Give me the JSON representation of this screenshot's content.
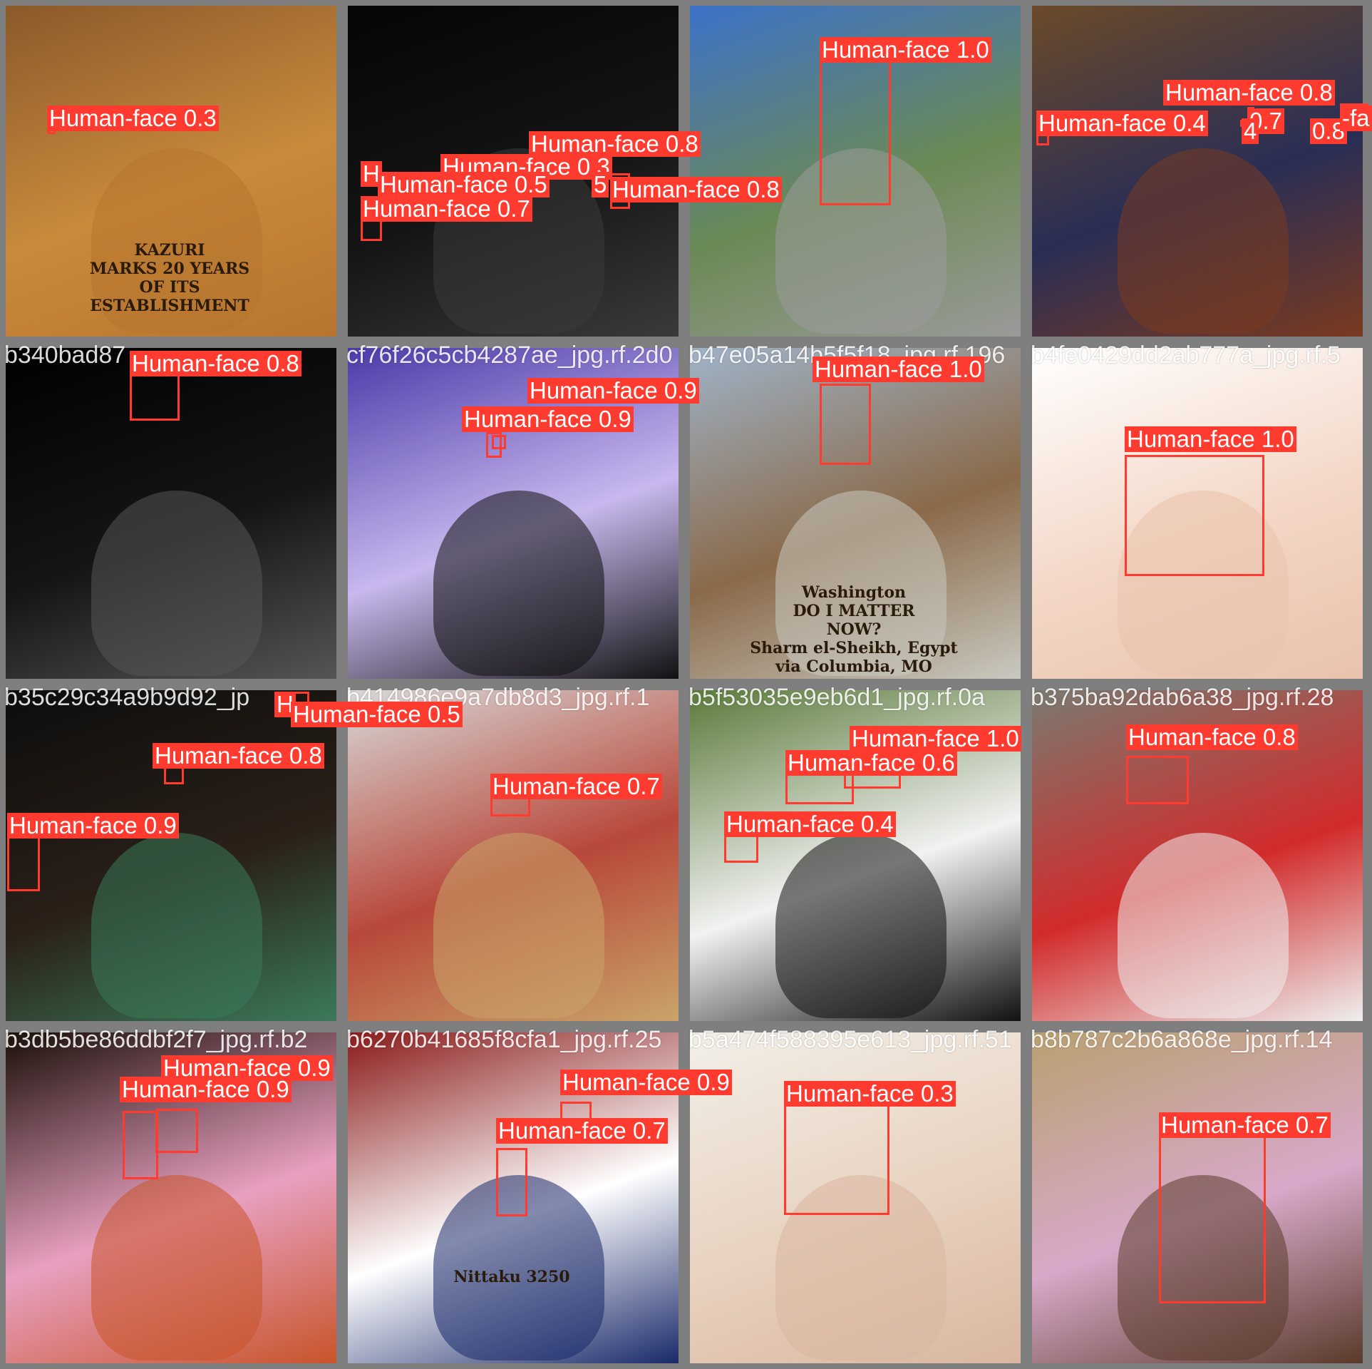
{
  "colors": {
    "border": "#7f7f7f",
    "box": "#ff3b30",
    "label_text": "#ffffff",
    "filename_text": "#ffffff"
  },
  "tiles": [
    {
      "row": 0,
      "col": 0,
      "filename": "",
      "bg": [
        "#8b5a2b",
        "#c98a3c",
        "#b7742e"
      ],
      "detections": [
        {
          "label": "Human-face 0.3"
        }
      ],
      "scene_text": [
        "KAZURI",
        "MARKS 20 YEARS",
        "OF ITS",
        "ESTABLISHMENT"
      ]
    },
    {
      "row": 0,
      "col": 1,
      "filename": "",
      "bg": [
        "#050505",
        "#151515",
        "#3a3a3a"
      ],
      "detections": [
        {
          "label": "Human-face 0.8"
        },
        {
          "label": "Human-face 0.3"
        },
        {
          "label": "H"
        },
        {
          "label": "Human-face 0.5"
        },
        {
          "label": "5"
        },
        {
          "label": "Human-face 0.8"
        },
        {
          "label": "Human-face 0.7"
        }
      ]
    },
    {
      "row": 0,
      "col": 2,
      "filename": "",
      "bg": [
        "#3d72c9",
        "#6b8a55",
        "#9a9a9a"
      ],
      "detections": [
        {
          "label": "Human-face 1.0"
        }
      ]
    },
    {
      "row": 0,
      "col": 3,
      "filename": "",
      "bg": [
        "#6b4a2a",
        "#2a2e55",
        "#7a3a20"
      ],
      "detections": [
        {
          "label": "Human-face 0.8"
        },
        {
          "label": "Human-face 0.4"
        },
        {
          "label": "0.7"
        },
        {
          "label": "4"
        },
        {
          "label": "0.8"
        },
        {
          "label": "-fa"
        }
      ]
    },
    {
      "row": 1,
      "col": 0,
      "filename": "b340bad87",
      "bg": [
        "#000000",
        "#151515",
        "#555555"
      ],
      "detections": [
        {
          "label": "Human-face 0.8"
        }
      ]
    },
    {
      "row": 1,
      "col": 1,
      "filename": "cf76f26c5cb4287ae_jpg.rf.2d0",
      "bg": [
        "#4b3aa8",
        "#c8b8ee",
        "#111111"
      ],
      "detections": [
        {
          "label": "Human-face 0.9"
        },
        {
          "label": "Human-face 0.9"
        }
      ]
    },
    {
      "row": 1,
      "col": 2,
      "filename": "b47e05a14b5f5f18_jpg.rf.196",
      "bg": [
        "#9fb3c8",
        "#8a6a4a",
        "#c9c9c0"
      ],
      "detections": [
        {
          "label": "Human-face 1.0"
        }
      ],
      "scene_text": [
        "Washington",
        "DO I MATTER",
        "NOW?",
        "Sharm el-Sheikh, Egypt",
        "via Columbia, MO"
      ]
    },
    {
      "row": 1,
      "col": 3,
      "filename": "b4fe0429dd2ab777a_jpg.rf.5",
      "bg": [
        "#ffffff",
        "#f3d7c7",
        "#e9c2ac"
      ],
      "detections": [
        {
          "label": "Human-face 1.0"
        }
      ]
    },
    {
      "row": 2,
      "col": 0,
      "filename": "b35c29c34a9b9d92_jp",
      "bg": [
        "#0d0d0d",
        "#2a2018",
        "#3b7a5a"
      ],
      "detections": [
        {
          "label": "H"
        },
        {
          "label": "Human-face 0.5"
        },
        {
          "label": "Human-face 0.8"
        },
        {
          "label": "Human-face 0.9"
        }
      ]
    },
    {
      "row": 2,
      "col": 1,
      "filename": "b414986e9a7db8d3_jpg.rf.1",
      "bg": [
        "#d8d8d8",
        "#b8483a",
        "#c9a46a"
      ],
      "detections": [
        {
          "label": "Human-face 0.7"
        }
      ]
    },
    {
      "row": 2,
      "col": 2,
      "filename": "b5f53035e9eb6d1_jpg.rf.0a",
      "bg": [
        "#5a7a3a",
        "#f2f2f2",
        "#111111"
      ],
      "detections": [
        {
          "label": "Human-face 0.6"
        },
        {
          "label": "Human-face 1.0"
        },
        {
          "label": "Human-face 0.4"
        }
      ]
    },
    {
      "row": 2,
      "col": 3,
      "filename": "b375ba92dab6a38_jpg.rf.28",
      "bg": [
        "#7a7a70",
        "#d22b2b",
        "#eeeeee"
      ],
      "detections": [
        {
          "label": "Human-face 0.8"
        }
      ]
    },
    {
      "row": 3,
      "col": 0,
      "filename": "b3db5be86ddbf2f7_jpg.rf.b2",
      "bg": [
        "#1a0f08",
        "#e8a0c0",
        "#c8542a"
      ],
      "detections": [
        {
          "label": "Human-face 0.9"
        },
        {
          "label": "Human-face 0.9"
        }
      ]
    },
    {
      "row": 3,
      "col": 1,
      "filename": "b6270b41685f8cfa1_jpg.rf.25",
      "bg": [
        "#8a1a1a",
        "#ffffff",
        "#1a2a6a"
      ],
      "detections": [
        {
          "label": "Human-face 0.9"
        },
        {
          "label": "Human-face 0.7"
        }
      ],
      "scene_text": [
        "Nittaku 3250"
      ]
    },
    {
      "row": 3,
      "col": 2,
      "filename": "b5a474f588395e613_jpg.rf.51",
      "bg": [
        "#f2efe8",
        "#e8d2c0",
        "#d9b6a0"
      ],
      "detections": [
        {
          "label": "Human-face 0.3"
        }
      ]
    },
    {
      "row": 3,
      "col": 3,
      "filename": "b8b787c2b6a868e_jpg.rf.14",
      "bg": [
        "#b8a070",
        "#d8a8c8",
        "#5a3a2a"
      ],
      "detections": [
        {
          "label": "Human-face 0.7"
        }
      ]
    }
  ]
}
